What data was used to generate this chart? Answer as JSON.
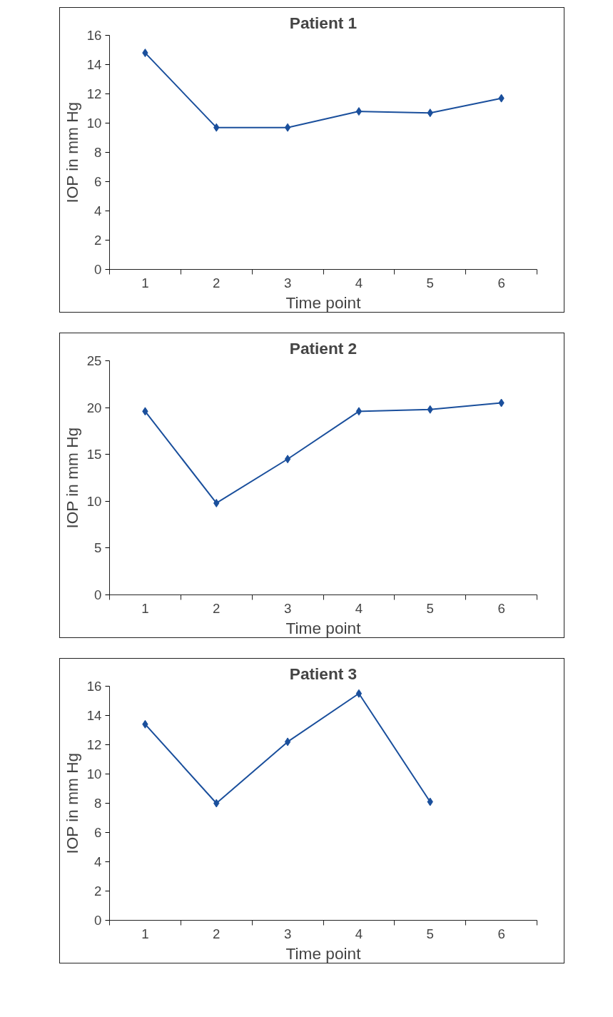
{
  "chart_data": [
    {
      "type": "line",
      "title": "Patient 1",
      "xlabel": "Time point",
      "ylabel": "IOP in mm Hg",
      "categories": [
        "1",
        "2",
        "3",
        "4",
        "5",
        "6"
      ],
      "marker": "diamond",
      "grid": false,
      "ylim": [
        0,
        16
      ],
      "yticks": [
        0,
        2,
        4,
        6,
        8,
        10,
        12,
        14,
        16
      ],
      "series": [
        {
          "color": "#1a4f9c",
          "values": [
            14.8,
            9.7,
            9.7,
            10.8,
            10.7,
            11.7
          ]
        }
      ]
    },
    {
      "type": "line",
      "title": "Patient 2",
      "xlabel": "Time point",
      "ylabel": "IOP in mm Hg",
      "categories": [
        "1",
        "2",
        "3",
        "4",
        "5",
        "6"
      ],
      "marker": "diamond",
      "grid": false,
      "ylim": [
        0,
        25
      ],
      "yticks": [
        0,
        5,
        10,
        15,
        20,
        25
      ],
      "series": [
        {
          "color": "#1a4f9c",
          "values": [
            19.6,
            9.8,
            14.5,
            19.6,
            19.8,
            20.5
          ]
        }
      ]
    },
    {
      "type": "line",
      "title": "Patient 3",
      "xlabel": "Time point",
      "ylabel": "IOP in mm Hg",
      "categories": [
        "1",
        "2",
        "3",
        "4",
        "5",
        "6"
      ],
      "marker": "diamond",
      "grid": false,
      "ylim": [
        0,
        16
      ],
      "yticks": [
        0,
        2,
        4,
        6,
        8,
        10,
        12,
        14,
        16
      ],
      "series": [
        {
          "color": "#1a4f9c",
          "values": [
            13.4,
            8.0,
            12.2,
            15.5,
            8.1,
            null
          ]
        }
      ]
    }
  ]
}
